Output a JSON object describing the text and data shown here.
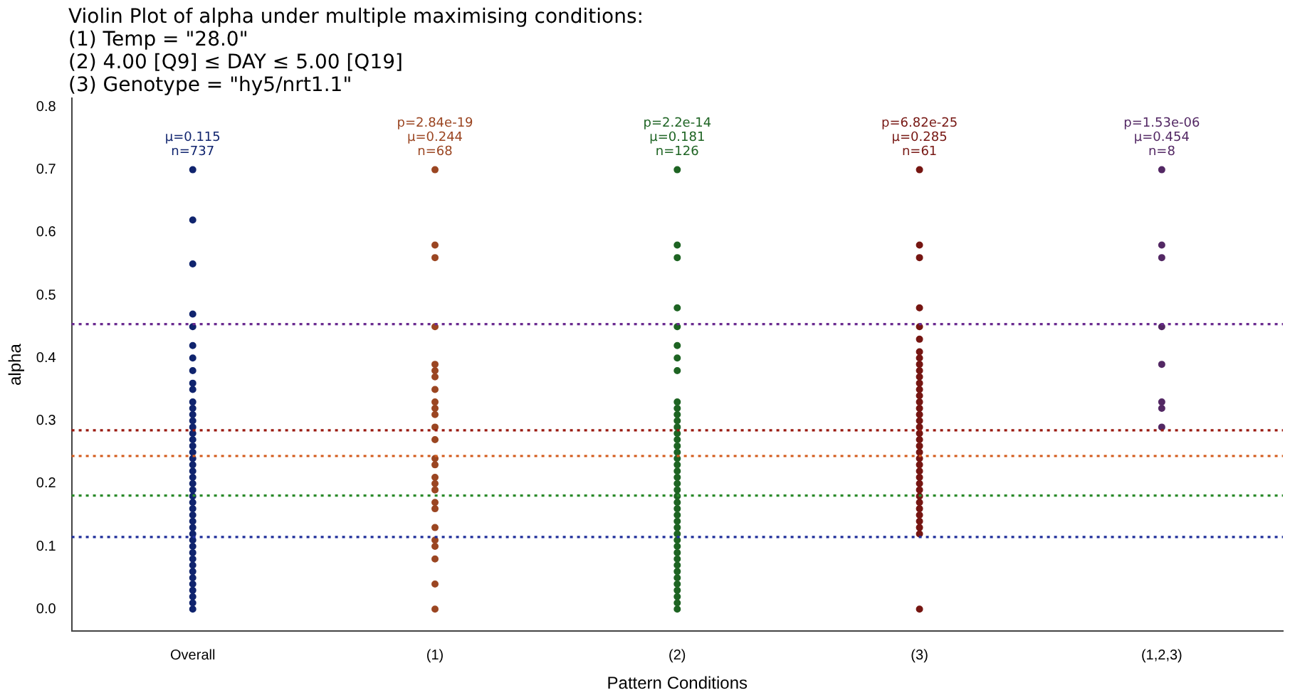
{
  "chart_data": {
    "type": "scatter",
    "title": "Violin Plot of alpha under multiple maximising conditions:\n(1) Temp = \"28.0\"\n(2) 4.00 [Q9] ≤ DAY ≤ 5.00 [Q19]\n(3) Genotype = \"hy5/nrt1.1\"",
    "xlabel": "Pattern Conditions",
    "ylabel": "alpha",
    "categories": [
      "Overall",
      "(1)",
      "(2)",
      "(3)",
      "(1,2,3)"
    ],
    "series": [
      {
        "color": "#10246e",
        "x": [
          "Overall",
          "Overall",
          "Overall",
          "Overall",
          "Overall",
          "Overall",
          "Overall",
          "Overall",
          "Overall",
          "Overall",
          "Overall",
          "Overall",
          "Overall",
          "Overall",
          "Overall",
          "Overall",
          "Overall",
          "Overall",
          "Overall",
          "Overall",
          "Overall",
          "Overall",
          "Overall",
          "Overall",
          "Overall",
          "Overall",
          "Overall",
          "Overall",
          "Overall",
          "Overall",
          "Overall",
          "Overall",
          "Overall",
          "Overall",
          "Overall",
          "Overall",
          "Overall",
          "Overall",
          "Overall",
          "Overall",
          "Overall",
          "Overall",
          "Overall",
          "Overall"
        ],
        "values": [
          0,
          0.01,
          0.02,
          0.03,
          0.04,
          0.05,
          0.06,
          0.07,
          0.08,
          0.09,
          0.1,
          0.11,
          0.12,
          0.13,
          0.14,
          0.15,
          0.16,
          0.17,
          0.18,
          0.19,
          0.2,
          0.21,
          0.22,
          0.23,
          0.24,
          0.25,
          0.26,
          0.27,
          0.28,
          0.29,
          0.3,
          0.31,
          0.32,
          0.33,
          0.35,
          0.36,
          0.38,
          0.4,
          0.42,
          0.45,
          0.47,
          0.55,
          0.62,
          0.7
        ]
      },
      {
        "color": "#9b4622",
        "x": [
          "(1)",
          "(1)",
          "(1)",
          "(1)",
          "(1)",
          "(1)",
          "(1)",
          "(1)",
          "(1)",
          "(1)",
          "(1)",
          "(1)",
          "(1)",
          "(1)",
          "(1)",
          "(1)",
          "(1)",
          "(1)",
          "(1)",
          "(1)",
          "(1)",
          "(1)",
          "(1)",
          "(1)",
          "(1)",
          "(1)"
        ],
        "values": [
          0,
          0.04,
          0.08,
          0.1,
          0.11,
          0.13,
          0.16,
          0.17,
          0.19,
          0.2,
          0.21,
          0.23,
          0.24,
          0.27,
          0.29,
          0.31,
          0.32,
          0.33,
          0.35,
          0.37,
          0.38,
          0.39,
          0.45,
          0.56,
          0.58,
          0.7
        ]
      },
      {
        "color": "#1e6423",
        "x": [
          "(2)",
          "(2)",
          "(2)",
          "(2)",
          "(2)",
          "(2)",
          "(2)",
          "(2)",
          "(2)",
          "(2)",
          "(2)",
          "(2)",
          "(2)",
          "(2)",
          "(2)",
          "(2)",
          "(2)",
          "(2)",
          "(2)",
          "(2)",
          "(2)",
          "(2)",
          "(2)",
          "(2)",
          "(2)",
          "(2)",
          "(2)",
          "(2)",
          "(2)",
          "(2)",
          "(2)",
          "(2)",
          "(2)",
          "(2)",
          "(2)",
          "(2)",
          "(2)",
          "(2)",
          "(2)",
          "(2)",
          "(2)",
          "(2)"
        ],
        "values": [
          0,
          0.01,
          0.02,
          0.03,
          0.04,
          0.05,
          0.06,
          0.07,
          0.08,
          0.09,
          0.1,
          0.11,
          0.12,
          0.13,
          0.14,
          0.15,
          0.16,
          0.17,
          0.18,
          0.19,
          0.2,
          0.21,
          0.22,
          0.23,
          0.24,
          0.25,
          0.26,
          0.27,
          0.28,
          0.29,
          0.3,
          0.31,
          0.32,
          0.33,
          0.38,
          0.4,
          0.42,
          0.45,
          0.48,
          0.56,
          0.58,
          0.7
        ]
      },
      {
        "color": "#761612",
        "x": [
          "(3)",
          "(3)",
          "(3)",
          "(3)",
          "(3)",
          "(3)",
          "(3)",
          "(3)",
          "(3)",
          "(3)",
          "(3)",
          "(3)",
          "(3)",
          "(3)",
          "(3)",
          "(3)",
          "(3)",
          "(3)",
          "(3)",
          "(3)",
          "(3)",
          "(3)",
          "(3)",
          "(3)",
          "(3)",
          "(3)",
          "(3)",
          "(3)",
          "(3)",
          "(3)",
          "(3)",
          "(3)",
          "(3)",
          "(3)",
          "(3)",
          "(3)",
          "(3)"
        ],
        "values": [
          0,
          0.12,
          0.13,
          0.14,
          0.15,
          0.16,
          0.17,
          0.18,
          0.19,
          0.2,
          0.21,
          0.22,
          0.23,
          0.24,
          0.25,
          0.26,
          0.27,
          0.28,
          0.29,
          0.3,
          0.31,
          0.32,
          0.33,
          0.34,
          0.35,
          0.36,
          0.37,
          0.38,
          0.39,
          0.4,
          0.41,
          0.43,
          0.45,
          0.48,
          0.56,
          0.58,
          0.7
        ]
      },
      {
        "color": "#532864",
        "x": [
          "(1,2,3)",
          "(1,2,3)",
          "(1,2,3)",
          "(1,2,3)",
          "(1,2,3)",
          "(1,2,3)",
          "(1,2,3)",
          "(1,2,3)"
        ],
        "values": [
          0.29,
          0.32,
          0.33,
          0.39,
          0.45,
          0.56,
          0.58,
          0.7
        ]
      }
    ],
    "ref_lines": [
      {
        "axis": "y",
        "value": 0.115,
        "color": "#1f2f9a",
        "line_style": "dotted"
      },
      {
        "axis": "y",
        "value": 0.244,
        "color": "#d35a1a",
        "line_style": "dotted"
      },
      {
        "axis": "y",
        "value": 0.181,
        "color": "#2a8a2a",
        "line_style": "dotted"
      },
      {
        "axis": "y",
        "value": 0.285,
        "color": "#9a1a10",
        "line_style": "dotted"
      },
      {
        "axis": "y",
        "value": 0.454,
        "color": "#6a2a90",
        "line_style": "dotted"
      }
    ],
    "annotations": [
      "μ=0.115\nn=737",
      "p=2.84e-19\nμ=0.244\nn=68",
      "p=2.2e-14\nμ=0.181\nn=126",
      "p=6.82e-25\nμ=0.285\nn=61",
      "p=1.53e-06\nμ=0.454\nn=8"
    ],
    "ylim": [
      -0.035,
      0.814
    ],
    "yticks": [
      {
        "value": 0,
        "label": "0.0"
      },
      {
        "value": 0.1,
        "label": "0.1"
      },
      {
        "value": 0.2,
        "label": "0.2"
      },
      {
        "value": 0.3,
        "label": "0.3"
      },
      {
        "value": 0.4,
        "label": "0.4"
      },
      {
        "value": 0.5,
        "label": "0.5"
      },
      {
        "value": 0.6,
        "label": "0.6"
      },
      {
        "value": 0.7,
        "label": "0.7"
      },
      {
        "value": 0.8,
        "label": "0.8"
      }
    ],
    "marker": "circle",
    "grid": false,
    "legend": false
  }
}
